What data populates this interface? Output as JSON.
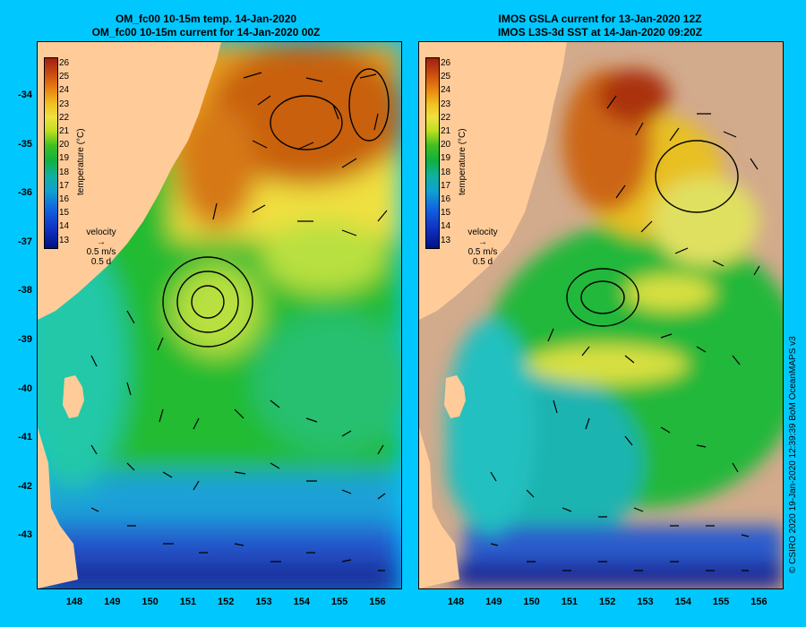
{
  "left_panel": {
    "title_line1": "OM_fc00 10-15m temp. 14-Jan-2020",
    "title_line2": "OM_fc00 10-15m current for 14-Jan-2020 00Z"
  },
  "right_panel": {
    "title_line1": "IMOS GSLA current for 13-Jan-2020 12Z",
    "title_line2": "IMOS L3S-3d SST at 14-Jan-2020 09:20Z"
  },
  "y_axis_labels": [
    "-34",
    "-35",
    "-36",
    "-37",
    "-38",
    "-39",
    "-40",
    "-41",
    "-42",
    "-43"
  ],
  "x_axis_labels": [
    "148",
    "149",
    "150",
    "151",
    "152",
    "153",
    "154",
    "155",
    "156"
  ],
  "colorbar": {
    "ticks": [
      "26",
      "25",
      "24",
      "23",
      "22",
      "21",
      "20",
      "19",
      "18",
      "17",
      "16",
      "15",
      "14",
      "13"
    ],
    "label": "temperature (°C)"
  },
  "velocity_legend": {
    "title": "velocity",
    "speed": "0.5 m/s",
    "duration": "0.5 d"
  },
  "credit": "© CSIRO 2020  19-Jan-2020 12:39:39 BoM OceanMAPS v3",
  "colors": {
    "background": "#00c8ff",
    "land": "#ffcc99",
    "missing_data": "#d2aa8c"
  }
}
